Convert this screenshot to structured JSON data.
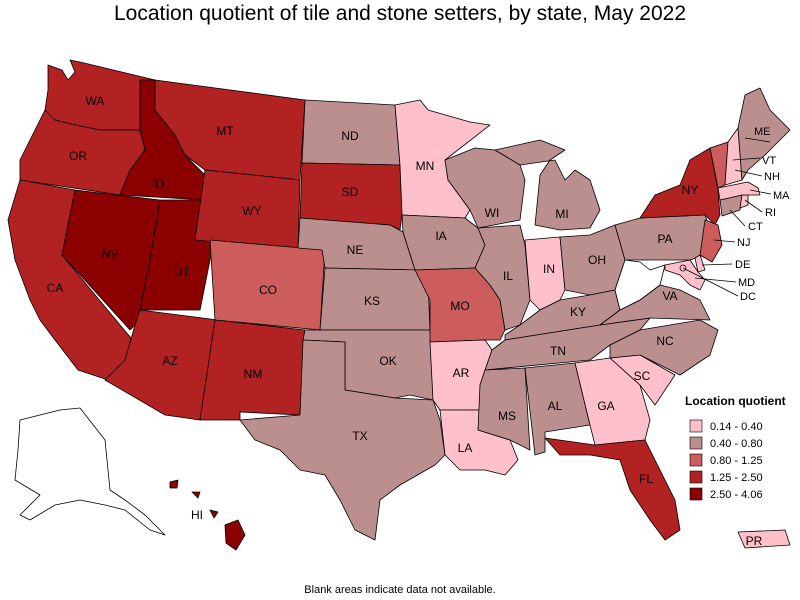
{
  "title": "Location quotient of tile and stone setters, by state, May 2022",
  "footnote": "Blank areas indicate data not available.",
  "legend": {
    "title": "Location quotient",
    "items": [
      {
        "label": "0.14 - 0.40",
        "color": "#ffc0cb"
      },
      {
        "label": "0.40 - 0.80",
        "color": "#bc8f8f"
      },
      {
        "label": "0.80 - 1.25",
        "color": "#cd5c5c"
      },
      {
        "label": "1.25 - 2.50",
        "color": "#b22222"
      },
      {
        "label": "2.50 - 4.06",
        "color": "#8b0000"
      }
    ]
  },
  "states": {
    "WA": {
      "label": "WA",
      "class": 3
    },
    "OR": {
      "label": "OR",
      "class": 3
    },
    "CA": {
      "label": "CA",
      "class": 3
    },
    "ID": {
      "label": "ID",
      "class": 4
    },
    "NV": {
      "label": "NV",
      "class": 4
    },
    "UT": {
      "label": "UT",
      "class": 4
    },
    "AZ": {
      "label": "AZ",
      "class": 3
    },
    "MT": {
      "label": "MT",
      "class": 3
    },
    "WY": {
      "label": "WY",
      "class": 3
    },
    "CO": {
      "label": "CO",
      "class": 2
    },
    "NM": {
      "label": "NM",
      "class": 3
    },
    "ND": {
      "label": "ND",
      "class": 1
    },
    "SD": {
      "label": "SD",
      "class": 3
    },
    "NE": {
      "label": "NE",
      "class": 1
    },
    "KS": {
      "label": "KS",
      "class": 1
    },
    "OK": {
      "label": "OK",
      "class": 1
    },
    "TX": {
      "label": "TX",
      "class": 1
    },
    "MN": {
      "label": "MN",
      "class": 0
    },
    "IA": {
      "label": "IA",
      "class": 1
    },
    "MO": {
      "label": "MO",
      "class": 2
    },
    "AR": {
      "label": "AR",
      "class": 0
    },
    "LA": {
      "label": "LA",
      "class": 0
    },
    "WI": {
      "label": "WI",
      "class": 1
    },
    "IL": {
      "label": "IL",
      "class": 1
    },
    "MI": {
      "label": "MI",
      "class": 1
    },
    "IN": {
      "label": "IN",
      "class": 0
    },
    "OH": {
      "label": "OH",
      "class": 1
    },
    "KY": {
      "label": "KY",
      "class": 1
    },
    "TN": {
      "label": "TN",
      "class": 1
    },
    "MS": {
      "label": "MS",
      "class": 1
    },
    "AL": {
      "label": "AL",
      "class": 1
    },
    "GA": {
      "label": "GA",
      "class": 0
    },
    "FL": {
      "label": "FL",
      "class": 3
    },
    "SC": {
      "label": "SC",
      "class": 0
    },
    "NC": {
      "label": "NC",
      "class": 1
    },
    "VA": {
      "label": "VA",
      "class": 1
    },
    "PA": {
      "label": "PA",
      "class": 1
    },
    "NY": {
      "label": "NY",
      "class": 3
    },
    "ME": {
      "label": "ME",
      "class": 1
    },
    "VT": {
      "label": "VT",
      "class": 2
    },
    "NH": {
      "label": "NH",
      "class": 0
    },
    "MA": {
      "label": "MA",
      "class": 0
    },
    "RI": {
      "label": "RI",
      "class": 0
    },
    "CT": {
      "label": "CT",
      "class": 1
    },
    "NJ": {
      "label": "NJ",
      "class": 2
    },
    "DE": {
      "label": "DE",
      "class": 0
    },
    "MD": {
      "label": "MD",
      "class": 0
    },
    "DC": {
      "label": "DC",
      "class": 0
    },
    "WV": {
      "label": "",
      "class": -1
    },
    "AK": {
      "label": "",
      "class": -1
    },
    "HI": {
      "label": "HI",
      "class": 4
    },
    "PR": {
      "label": "PR",
      "class": 0
    }
  }
}
